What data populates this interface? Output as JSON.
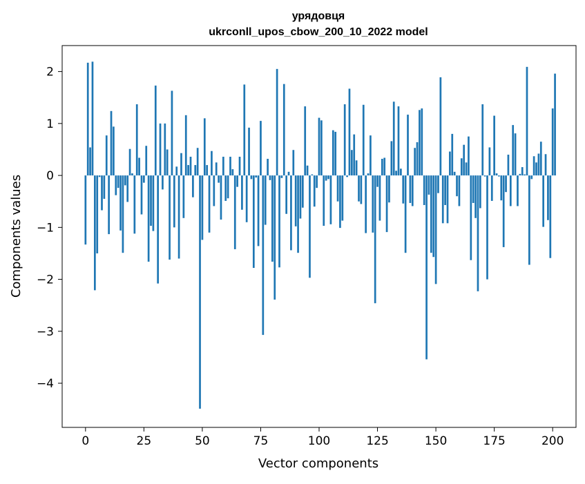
{
  "chart_data": {
    "type": "bar",
    "title": "урядовця",
    "subtitle": "ukrconll_upos_cbow_200_10_2022 model",
    "xlabel": "Vector components",
    "ylabel": "Components values",
    "xlim": [
      -10,
      210
    ],
    "ylim": [
      -4.85,
      2.5
    ],
    "xticks": [
      0,
      25,
      50,
      75,
      100,
      125,
      150,
      175,
      200
    ],
    "yticks": [
      2,
      1,
      0,
      -1,
      -2,
      -3,
      -4
    ],
    "ytick_labels": [
      "2",
      "1",
      "0",
      "−1",
      "−2",
      "−3",
      "−4"
    ],
    "grid": false,
    "bar_color": "#1f77b4",
    "series": [
      {
        "values": [
          -1.33,
          2.17,
          0.54,
          2.19,
          -2.21,
          -1.5,
          -0.03,
          -0.67,
          -0.45,
          0.77,
          -1.13,
          1.24,
          0.94,
          -0.38,
          -0.24,
          -1.06,
          -1.49,
          -0.19,
          -0.51,
          0.51,
          0.04,
          -1.12,
          1.37,
          0.34,
          -0.75,
          -0.14,
          0.57,
          -1.66,
          -0.97,
          -1.07,
          1.73,
          -2.08,
          1.0,
          -0.27,
          1.0,
          0.5,
          -1.62,
          1.63,
          -1.0,
          0.17,
          -1.6,
          0.43,
          -0.82,
          1.16,
          0.2,
          0.36,
          -0.42,
          0.2,
          0.53,
          -4.49,
          -1.24,
          1.1,
          0.2,
          -1.1,
          0.47,
          -0.59,
          0.25,
          -0.14,
          -0.85,
          0.36,
          -0.49,
          -0.44,
          0.36,
          0.12,
          -1.42,
          -0.22,
          0.36,
          -0.66,
          1.75,
          -0.9,
          0.92,
          -0.07,
          -1.78,
          -0.04,
          -1.36,
          1.05,
          -3.07,
          -0.95,
          0.32,
          -0.09,
          -1.66,
          -2.39,
          2.05,
          -1.77,
          -0.05,
          1.76,
          -0.74,
          0.07,
          -1.44,
          0.49,
          -0.98,
          -1.49,
          -0.83,
          -0.62,
          1.33,
          0.19,
          -1.97,
          0.02,
          -0.6,
          -0.24,
          1.11,
          1.06,
          -0.97,
          -0.1,
          -0.07,
          -0.94,
          0.87,
          0.84,
          -0.5,
          -1.01,
          -0.87,
          1.37,
          -0.03,
          1.67,
          0.49,
          0.79,
          0.29,
          -0.5,
          -0.55,
          1.36,
          -1.11,
          0.04,
          0.77,
          -1.1,
          -2.46,
          -0.22,
          -0.87,
          0.32,
          0.34,
          -1.09,
          -0.52,
          0.66,
          1.42,
          0.09,
          1.33,
          0.13,
          -0.54,
          -1.49,
          1.17,
          -0.53,
          -0.59,
          0.53,
          0.64,
          1.26,
          1.29,
          -0.57,
          -3.54,
          -0.37,
          -1.49,
          -1.57,
          -2.09,
          -0.34,
          1.89,
          -0.92,
          -0.57,
          -0.92,
          0.46,
          0.8,
          0.07,
          -0.4,
          -0.59,
          0.33,
          0.59,
          0.25,
          0.75,
          -1.63,
          -0.53,
          -0.82,
          -2.23,
          -0.63,
          1.37,
          -0.02,
          -2.0,
          0.54,
          -0.49,
          1.15,
          0.04,
          -0.02,
          -0.48,
          -1.38,
          -0.32,
          0.4,
          -0.59,
          0.97,
          0.81,
          -0.59,
          0.03,
          0.16,
          0.02,
          2.09,
          -1.72,
          -0.07,
          0.37,
          0.25,
          0.42,
          0.65,
          -0.99,
          0.41,
          -0.86,
          -1.59,
          1.29,
          1.96
        ]
      }
    ]
  }
}
